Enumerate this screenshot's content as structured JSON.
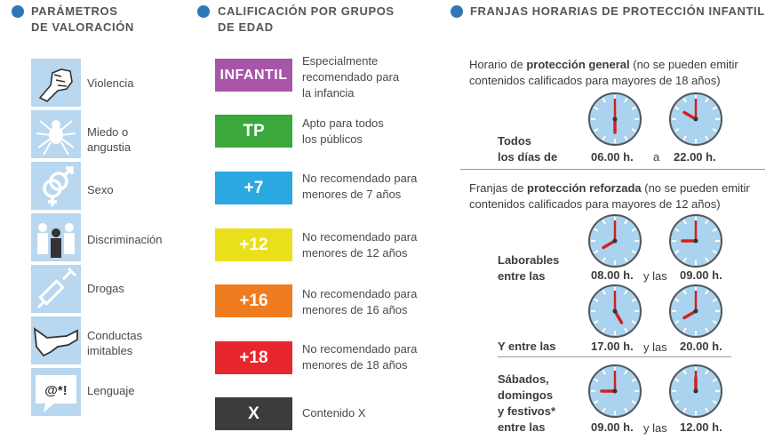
{
  "sections": {
    "params_title": [
      "PARÁMETROS",
      "DE VALORACIÓN"
    ],
    "ages_title": [
      "CALIFICACIÓN POR GRUPOS",
      "DE EDAD"
    ],
    "time_title": "FRANJAS HORARIAS DE PROTECCIÓN INFANTIL"
  },
  "parameters": [
    {
      "icon": "fist-icon",
      "label": [
        "Violencia"
      ]
    },
    {
      "icon": "spider-icon",
      "label": [
        "Miedo o",
        "angustia"
      ]
    },
    {
      "icon": "gender-icon",
      "label": [
        "Sexo"
      ]
    },
    {
      "icon": "people-icon",
      "label": [
        "Discriminación"
      ]
    },
    {
      "icon": "syringe-icon",
      "label": [
        "Drogas"
      ]
    },
    {
      "icon": "hand-icon",
      "label": [
        "Conductas",
        "imitables"
      ]
    },
    {
      "icon": "speech-icon",
      "label": [
        "Lenguaje"
      ],
      "symbol": "@*!"
    }
  ],
  "ratings": [
    {
      "code": "INFANTIL",
      "color": "#a855a8",
      "desc": [
        "Especialmente",
        "recomendado para",
        "la infancia"
      ]
    },
    {
      "code": "TP",
      "color": "#3aa83a",
      "desc": [
        "Apto para todos",
        "los públicos"
      ]
    },
    {
      "code": "+7",
      "color": "#2aa8e0",
      "desc": [
        "No recomendado para",
        "menores de 7 años"
      ]
    },
    {
      "code": "+12",
      "color": "#e9e01b",
      "desc": [
        "No recomendado para",
        "menores de 12 años"
      ]
    },
    {
      "code": "+16",
      "color": "#ef7d1f",
      "desc": [
        "No recomendado para",
        "menores de 16 años"
      ]
    },
    {
      "code": "+18",
      "color": "#e8262e",
      "desc": [
        "No recomendado para",
        "menores de 18 años"
      ]
    },
    {
      "code": "X",
      "color": "#3c3c3c",
      "desc": [
        "Contenido X"
      ]
    }
  ],
  "general": {
    "line1_pre": "Horario de ",
    "line1_bold": "protección general",
    "line1_post": " (no se pueden emitir",
    "line2": "contenidos calificados para mayores de 18 años)",
    "label": [
      "Todos",
      "los días de"
    ],
    "from": "06.00 h.",
    "sep": "a",
    "to": "22.00 h."
  },
  "reinforced": {
    "line1_pre": "Franjas de ",
    "line1_bold": "protección reforzada",
    "line1_post": " (no se pueden emitir",
    "line2": "contenidos calificados para mayores de 12 años)",
    "weekday_label": [
      "Laborables",
      "entre las"
    ],
    "weekday_from": "08.00 h.",
    "weekday_sep": "y las",
    "weekday_to": "09.00 h.",
    "evening_label": "Y entre las",
    "evening_from": "17.00 h.",
    "evening_sep": "y las",
    "evening_to": "20.00 h.",
    "weekend_label": [
      "Sábados,",
      "domingos",
      "y festivos*",
      "entre las"
    ],
    "weekend_from": "09.00 h.",
    "weekend_sep": "y las",
    "weekend_to": "12.00 h."
  },
  "clocks": [
    {
      "name": "clock-06",
      "hour": 6
    },
    {
      "name": "clock-22",
      "hour": 22
    },
    {
      "name": "clock-08",
      "hour": 8
    },
    {
      "name": "clock-09a",
      "hour": 9
    },
    {
      "name": "clock-17",
      "hour": 17
    },
    {
      "name": "clock-20",
      "hour": 20
    },
    {
      "name": "clock-09b",
      "hour": 9
    },
    {
      "name": "clock-12",
      "hour": 12
    }
  ],
  "colors": {
    "accent": "#2f77b8",
    "icon_bg": "#b9d7ee",
    "clock_face": "#a9d3ee",
    "hand": "#d42020"
  }
}
